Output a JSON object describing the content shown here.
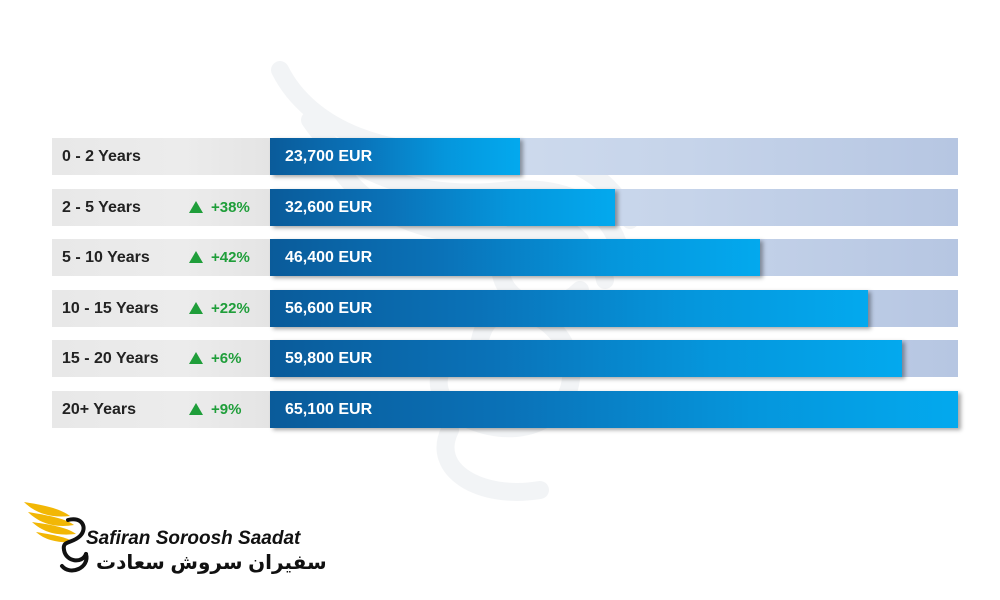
{
  "chart_data": {
    "type": "bar",
    "orientation": "horizontal",
    "categories": [
      "0 - 2 Years",
      "2 - 5 Years",
      "5 - 10 Years",
      "10 - 15 Years",
      "15 - 20 Years",
      "20+ Years"
    ],
    "values": [
      23700,
      32600,
      46400,
      56600,
      59800,
      65100
    ],
    "value_labels": [
      "23,700 EUR",
      "32,600 EUR",
      "46,400 EUR",
      "56,600 EUR",
      "59,800 EUR",
      "65,100 EUR"
    ],
    "changes": [
      "",
      "+38%",
      "+42%",
      "+22%",
      "+6%",
      "+9%"
    ],
    "unit": "EUR",
    "xlim": [
      0,
      65100
    ],
    "title": "",
    "xlabel": "",
    "ylabel": ""
  },
  "brand": {
    "name_en": "Safiran Soroosh Saadat",
    "name_fa": "سفیران سروش سعادت"
  },
  "colors": {
    "bar_dark": "#0a5b9a",
    "bar_light": "#03a9ee",
    "track": "#c6d4ea",
    "label_bg": "#e8e8e8",
    "increase": "#1f9e3a",
    "logo_gold": "#f2b705"
  }
}
